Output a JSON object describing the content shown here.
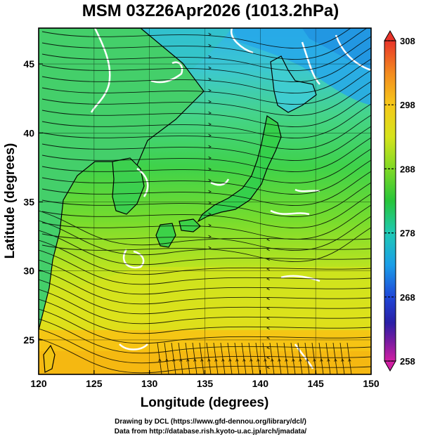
{
  "title": "MSM 03Z26Apr2026 (1013.2hPa)",
  "axes": {
    "xlabel": "Longitude (degrees)",
    "ylabel": "Latitude  (degrees)",
    "xlim": [
      120,
      150
    ],
    "ylim": [
      22.5,
      47.6
    ],
    "xticks": [
      120,
      125,
      130,
      135,
      140,
      145,
      150
    ],
    "yticks": [
      25,
      30,
      35,
      40,
      45
    ]
  },
  "colorbar": {
    "min": 258,
    "max": 308,
    "tick_labels": [
      "308",
      "298",
      "288",
      "278",
      "268",
      "258"
    ],
    "tick_values": [
      308,
      298,
      288,
      278,
      268,
      258
    ]
  },
  "credits": {
    "line1": "Drawing by DCL (https://www.gfd-dennou.org/library/dcl/)",
    "line2": "Data from http://database.rish.kyoto-u.ac.jp/arch/jmadata/"
  },
  "colors": {
    "warm": "#ffd400",
    "mid": "#33cc22",
    "cool": "#22bbdd",
    "cold": "#3399ee",
    "coast": "#000000",
    "contour": "#ffffff"
  }
}
